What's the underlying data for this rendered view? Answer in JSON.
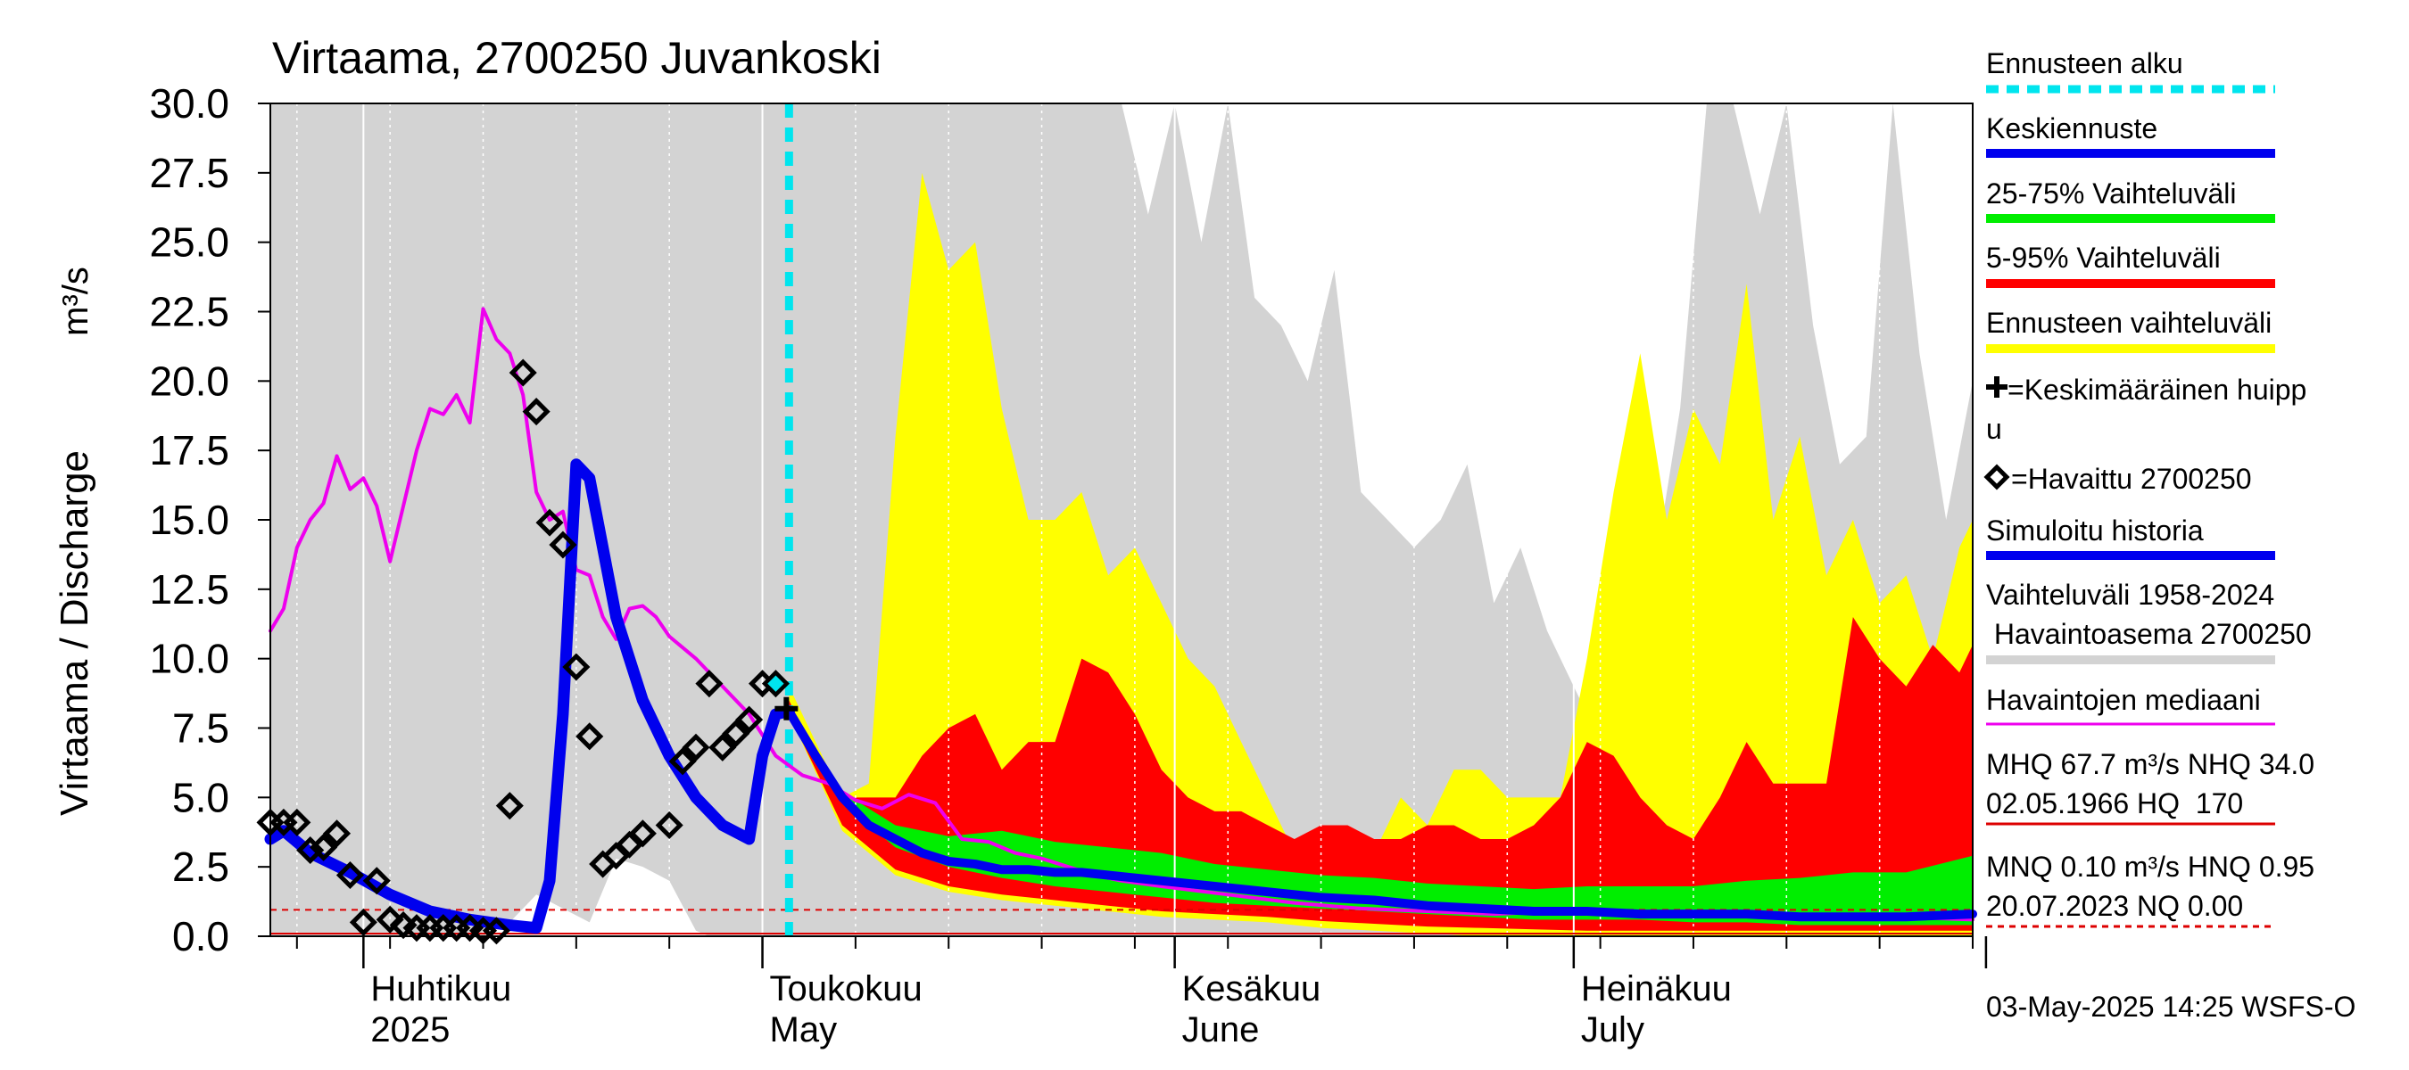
{
  "chart_data": {
    "type": "area",
    "title": "Virtaama, 2700250 Juvankoski",
    "ylabel": "Virtaama / Discharge",
    "yunit": "m³/s",
    "ylim": [
      0,
      30
    ],
    "yticks": [
      "0.0",
      "2.5",
      "5.0",
      "7.5",
      "10.0",
      "12.5",
      "15.0",
      "17.5",
      "20.0",
      "22.5",
      "25.0",
      "27.5",
      "30.0"
    ],
    "xlim": [
      "2025-03-25",
      "2025-07-31"
    ],
    "x_major_ticks": [
      "2025-04-01",
      "2025-05-01",
      "2025-06-01",
      "2025-07-01",
      "2025-08-01"
    ],
    "x_labels": [
      {
        "date": "2025-04-01",
        "line1": "Huhtikuu",
        "line2": "2025"
      },
      {
        "date": "2025-05-01",
        "line1": "Toukokuu",
        "line2": "May"
      },
      {
        "date": "2025-06-01",
        "line1": "Kesäkuu",
        "line2": "June"
      },
      {
        "date": "2025-07-01",
        "line1": "Heinäkuu",
        "line2": "July"
      }
    ],
    "forecast_start": "2025-05-03",
    "legend_placement": "right",
    "footer": "03-May-2025 14:25 WSFS-O",
    "colors": {
      "history_range": "#d3d3d3",
      "forecast_range": "#ffff00",
      "p5_95": "#ff0000",
      "p25_75": "#00ee00",
      "mean_forecast": "#0000ee",
      "simulated": "#0000ee",
      "median": "#ee00ee",
      "forecast_start": "#00e5ee",
      "reference_lines": "#dd0000"
    },
    "legend": [
      {
        "label": "Ennusteen alku",
        "color": "#00e5ee",
        "style": "dotted"
      },
      {
        "label": "Keskiennuste",
        "color": "#0000ee",
        "style": "line"
      },
      {
        "label": "25-75% Vaihteluväli",
        "color": "#00ee00",
        "style": "line"
      },
      {
        "label": "5-95% Vaihteluväli",
        "color": "#ff0000",
        "style": "line"
      },
      {
        "label": "Ennusteen vaihteluväli",
        "color": "#ffff00",
        "style": "line"
      },
      {
        "label": "=Keskimääräinen huipp",
        "label2": "u",
        "color": "#000000",
        "style": "plus"
      },
      {
        "label": "=Havaittu 2700250",
        "color": "#000000",
        "style": "diamond"
      },
      {
        "label": "Simuloitu historia",
        "color": "#0000ee",
        "style": "line"
      },
      {
        "label": "Vaihteluväli 1958-2024",
        "label2": " Havaintoasema 2700250",
        "color": "#d3d3d3",
        "style": "line"
      },
      {
        "label": "Havaintojen mediaani",
        "color": "#ee00ee",
        "style": "thin"
      },
      {
        "label": "MHQ 67.7 m³/s NHQ 34.0",
        "label2": "02.05.1966 HQ  170",
        "color": "#dd0000",
        "style": "thin"
      },
      {
        "label": "MNQ 0.10 m³/s HNQ 0.95",
        "label2": "20.07.2023 NQ 0.00",
        "color": "#dd0000",
        "style": "dashed"
      }
    ],
    "reference_levels": [
      {
        "name": "HNQ",
        "value": 0.95
      },
      {
        "name": "NQ",
        "value": 0.0
      }
    ],
    "mean_peak": {
      "date": "2025-05-03",
      "value": 8.2
    },
    "history_range_max": {
      "x": [
        "2025-03-25",
        "2025-04-27",
        "2025-05-05",
        "2025-05-10",
        "2025-05-12",
        "2025-05-14",
        "2025-05-16",
        "2025-05-18",
        "2025-05-20",
        "2025-05-22",
        "2025-05-24",
        "2025-05-26",
        "2025-05-28",
        "2025-05-30",
        "2025-06-01",
        "2025-06-03",
        "2025-06-05",
        "2025-06-07",
        "2025-06-09",
        "2025-06-11",
        "2025-06-13",
        "2025-06-15",
        "2025-06-17",
        "2025-06-19",
        "2025-06-21",
        "2025-06-23",
        "2025-06-25",
        "2025-06-27",
        "2025-06-29",
        "2025-07-01",
        "2025-07-03",
        "2025-07-05",
        "2025-07-07",
        "2025-07-09",
        "2025-07-11",
        "2025-07-13",
        "2025-07-15",
        "2025-07-17",
        "2025-07-19",
        "2025-07-21",
        "2025-07-23",
        "2025-07-25",
        "2025-07-27",
        "2025-07-29",
        "2025-07-31"
      ],
      "y": [
        30,
        30,
        30,
        30,
        30,
        30,
        30,
        30,
        30,
        30,
        30,
        30,
        30,
        26,
        30,
        25,
        30,
        23,
        22,
        20,
        24,
        16,
        15,
        14,
        15,
        17,
        12,
        14,
        11,
        9,
        7,
        10,
        13,
        19,
        30,
        30,
        26,
        30,
        22,
        17,
        18,
        30,
        21,
        15,
        20
      ]
    },
    "history_range_min": {
      "x": [
        "2025-03-25",
        "2025-04-10",
        "2025-04-12",
        "2025-04-14",
        "2025-04-16",
        "2025-04-18",
        "2025-04-20",
        "2025-04-22",
        "2025-04-24",
        "2025-04-26",
        "2025-04-27",
        "2025-07-31"
      ],
      "y": [
        0,
        0,
        0.5,
        1.5,
        1.0,
        0.5,
        2.8,
        2.5,
        2.0,
        0.2,
        0,
        0
      ]
    },
    "forecast_range_max": {
      "x": [
        "2025-05-03",
        "2025-05-05",
        "2025-05-07",
        "2025-05-09",
        "2025-05-11",
        "2025-05-13",
        "2025-05-15",
        "2025-05-17",
        "2025-05-19",
        "2025-05-21",
        "2025-05-23",
        "2025-05-25",
        "2025-05-27",
        "2025-05-29",
        "2025-05-31",
        "2025-06-02",
        "2025-06-04",
        "2025-06-06",
        "2025-06-08",
        "2025-06-10",
        "2025-06-12",
        "2025-06-14",
        "2025-06-16",
        "2025-06-18",
        "2025-06-20",
        "2025-06-22",
        "2025-06-24",
        "2025-06-26",
        "2025-06-28",
        "2025-06-30",
        "2025-07-02",
        "2025-07-04",
        "2025-07-06",
        "2025-07-08",
        "2025-07-10",
        "2025-07-12",
        "2025-07-14",
        "2025-07-16",
        "2025-07-18",
        "2025-07-20",
        "2025-07-22",
        "2025-07-24",
        "2025-07-26",
        "2025-07-28",
        "2025-07-30",
        "2025-07-31"
      ],
      "y": [
        9,
        7,
        5,
        5.5,
        18,
        27.5,
        24,
        25,
        19,
        15,
        15,
        16,
        13,
        14,
        12,
        10,
        9,
        7,
        5,
        3,
        4,
        4,
        3,
        5,
        4,
        6,
        6,
        5,
        5,
        5,
        10,
        16,
        21,
        15,
        19,
        17,
        23.5,
        15,
        18,
        13,
        15,
        12,
        13,
        10,
        14,
        15
      ]
    },
    "p5_95_max": {
      "x": [
        "2025-05-03",
        "2025-05-05",
        "2025-05-07",
        "2025-05-09",
        "2025-05-11",
        "2025-05-13",
        "2025-05-15",
        "2025-05-17",
        "2025-05-19",
        "2025-05-21",
        "2025-05-23",
        "2025-05-25",
        "2025-05-27",
        "2025-05-29",
        "2025-05-31",
        "2025-06-02",
        "2025-06-04",
        "2025-06-06",
        "2025-06-08",
        "2025-06-10",
        "2025-06-12",
        "2025-06-14",
        "2025-06-16",
        "2025-06-18",
        "2025-06-20",
        "2025-06-22",
        "2025-06-24",
        "2025-06-26",
        "2025-06-28",
        "2025-06-30",
        "2025-07-02",
        "2025-07-04",
        "2025-07-06",
        "2025-07-08",
        "2025-07-10",
        "2025-07-12",
        "2025-07-14",
        "2025-07-16",
        "2025-07-18",
        "2025-07-20",
        "2025-07-22",
        "2025-07-24",
        "2025-07-26",
        "2025-07-28",
        "2025-07-30",
        "2025-07-31"
      ],
      "y": [
        8.5,
        6.5,
        5,
        5,
        5,
        6.5,
        7.5,
        8,
        6,
        7,
        7,
        10,
        9.5,
        8,
        6,
        5,
        4.5,
        4.5,
        4,
        3.5,
        4,
        4,
        3.5,
        3.5,
        4,
        4,
        3.5,
        3.5,
        4,
        5,
        7,
        6.5,
        5,
        4,
        3.5,
        5,
        7,
        5.5,
        5.5,
        5.5,
        11.5,
        10,
        9,
        10.5,
        9.5,
        10.5
      ]
    },
    "p25_75_max": {
      "x": [
        "2025-05-03",
        "2025-05-07",
        "2025-05-11",
        "2025-05-15",
        "2025-05-19",
        "2025-05-23",
        "2025-05-27",
        "2025-05-31",
        "2025-06-04",
        "2025-06-08",
        "2025-06-12",
        "2025-06-16",
        "2025-06-20",
        "2025-06-24",
        "2025-06-28",
        "2025-07-02",
        "2025-07-06",
        "2025-07-10",
        "2025-07-14",
        "2025-07-18",
        "2025-07-22",
        "2025-07-26",
        "2025-07-31"
      ],
      "y": [
        8,
        5.2,
        4,
        3.6,
        3.8,
        3.4,
        3.2,
        3.0,
        2.6,
        2.4,
        2.2,
        2.1,
        1.9,
        1.8,
        1.7,
        1.8,
        1.8,
        1.8,
        2.0,
        2.1,
        2.3,
        2.3,
        2.9
      ]
    },
    "p25_75_min": {
      "x": [
        "2025-05-03",
        "2025-05-07",
        "2025-05-11",
        "2025-05-15",
        "2025-05-19",
        "2025-05-23",
        "2025-05-27",
        "2025-05-31",
        "2025-06-04",
        "2025-06-08",
        "2025-06-12",
        "2025-06-16",
        "2025-06-20",
        "2025-06-24",
        "2025-06-28",
        "2025-07-02",
        "2025-07-06",
        "2025-07-10",
        "2025-07-14",
        "2025-07-18",
        "2025-07-22",
        "2025-07-26",
        "2025-07-31"
      ],
      "y": [
        8,
        4.8,
        3.2,
        2.5,
        2.1,
        1.8,
        1.6,
        1.4,
        1.2,
        1.1,
        1.0,
        0.9,
        0.8,
        0.7,
        0.6,
        0.6,
        0.6,
        0.5,
        0.5,
        0.4,
        0.4,
        0.4,
        0.4
      ]
    },
    "p5_95_min": {
      "x": [
        "2025-05-03",
        "2025-05-07",
        "2025-05-11",
        "2025-05-15",
        "2025-05-19",
        "2025-05-23",
        "2025-05-27",
        "2025-05-31",
        "2025-06-04",
        "2025-06-08",
        "2025-06-12",
        "2025-06-16",
        "2025-06-20",
        "2025-06-24",
        "2025-06-28",
        "2025-07-02",
        "2025-07-06",
        "2025-07-10",
        "2025-07-14",
        "2025-07-18",
        "2025-07-22",
        "2025-07-26",
        "2025-07-31"
      ],
      "y": [
        8,
        4,
        2.4,
        1.8,
        1.5,
        1.3,
        1.1,
        0.9,
        0.8,
        0.7,
        0.55,
        0.45,
        0.35,
        0.3,
        0.25,
        0.2,
        0.2,
        0.2,
        0.2,
        0.2,
        0.2,
        0.2,
        0.2
      ]
    },
    "forecast_range_min": {
      "x": [
        "2025-05-03",
        "2025-05-07",
        "2025-05-11",
        "2025-05-15",
        "2025-05-19",
        "2025-05-23",
        "2025-05-27",
        "2025-05-31",
        "2025-06-04",
        "2025-06-08",
        "2025-06-12",
        "2025-06-16",
        "2025-06-20",
        "2025-06-24",
        "2025-06-28",
        "2025-07-02",
        "2025-07-31"
      ],
      "y": [
        8,
        3.8,
        2.2,
        1.6,
        1.3,
        1.1,
        0.9,
        0.7,
        0.6,
        0.5,
        0.3,
        0.2,
        0.1,
        0,
        0,
        0,
        0
      ]
    },
    "mean_forecast": {
      "x": [
        "2025-05-03",
        "2025-05-05",
        "2025-05-07",
        "2025-05-09",
        "2025-05-11",
        "2025-05-13",
        "2025-05-15",
        "2025-05-17",
        "2025-05-19",
        "2025-05-21",
        "2025-05-23",
        "2025-05-25",
        "2025-05-27",
        "2025-05-31",
        "2025-06-04",
        "2025-06-08",
        "2025-06-12",
        "2025-06-16",
        "2025-06-20",
        "2025-06-24",
        "2025-06-28",
        "2025-07-02",
        "2025-07-06",
        "2025-07-10",
        "2025-07-14",
        "2025-07-18",
        "2025-07-22",
        "2025-07-26",
        "2025-07-31"
      ],
      "y": [
        8.1,
        6.5,
        5.0,
        4.0,
        3.5,
        3.0,
        2.7,
        2.6,
        2.4,
        2.4,
        2.3,
        2.3,
        2.2,
        2.0,
        1.8,
        1.6,
        1.4,
        1.3,
        1.1,
        1.0,
        0.9,
        0.9,
        0.8,
        0.8,
        0.8,
        0.7,
        0.7,
        0.7,
        0.8
      ]
    },
    "simulated_history": {
      "x": [
        "2025-03-25",
        "2025-03-26",
        "2025-03-28",
        "2025-03-31",
        "2025-04-03",
        "2025-04-06",
        "2025-04-09",
        "2025-04-12",
        "2025-04-14",
        "2025-04-15",
        "2025-04-16",
        "2025-04-17",
        "2025-04-18",
        "2025-04-19",
        "2025-04-20",
        "2025-04-22",
        "2025-04-24",
        "2025-04-26",
        "2025-04-28",
        "2025-04-30",
        "2025-05-01",
        "2025-05-02",
        "2025-05-03"
      ],
      "y": [
        3.5,
        3.8,
        3.0,
        2.3,
        1.5,
        0.9,
        0.6,
        0.4,
        0.3,
        2.0,
        8.0,
        17.0,
        16.5,
        14.0,
        11.5,
        8.5,
        6.5,
        5.0,
        4.0,
        3.5,
        6.5,
        8.0,
        8.1
      ]
    },
    "observed": {
      "x": [
        "2025-03-25",
        "2025-03-26",
        "2025-03-27",
        "2025-03-28",
        "2025-03-29",
        "2025-03-30",
        "2025-03-31",
        "2025-04-01",
        "2025-04-02",
        "2025-04-03",
        "2025-04-04",
        "2025-04-05",
        "2025-04-06",
        "2025-04-07",
        "2025-04-08",
        "2025-04-09",
        "2025-04-10",
        "2025-04-11",
        "2025-04-12",
        "2025-04-13",
        "2025-04-14",
        "2025-04-15",
        "2025-04-16",
        "2025-04-17",
        "2025-04-18",
        "2025-04-19",
        "2025-04-20",
        "2025-04-21",
        "2025-04-22",
        "2025-04-24",
        "2025-04-25",
        "2025-04-26",
        "2025-04-27",
        "2025-04-28",
        "2025-04-29",
        "2025-04-30",
        "2025-05-01",
        "2025-05-02"
      ],
      "y": [
        4.1,
        4.1,
        4.1,
        3.1,
        3.2,
        3.7,
        2.2,
        0.5,
        2.0,
        0.6,
        0.4,
        0.3,
        0.3,
        0.3,
        0.3,
        0.3,
        0.2,
        0.2,
        4.7,
        20.3,
        18.9,
        14.9,
        14.1,
        9.7,
        7.2,
        2.6,
        2.9,
        3.3,
        3.7,
        4.0,
        6.3,
        6.8,
        9.1,
        6.8,
        7.3,
        7.8,
        9.1,
        9.1
      ]
    },
    "observed_latest": {
      "date": "2025-05-02",
      "value": 9.1
    },
    "median": {
      "x": [
        "2025-03-25",
        "2025-03-26",
        "2025-03-27",
        "2025-03-28",
        "2025-03-29",
        "2025-03-30",
        "2025-03-31",
        "2025-04-01",
        "2025-04-02",
        "2025-04-03",
        "2025-04-04",
        "2025-04-05",
        "2025-04-06",
        "2025-04-07",
        "2025-04-08",
        "2025-04-09",
        "2025-04-10",
        "2025-04-11",
        "2025-04-12",
        "2025-04-13",
        "2025-04-14",
        "2025-04-15",
        "2025-04-16",
        "2025-04-17",
        "2025-04-18",
        "2025-04-19",
        "2025-04-20",
        "2025-04-21",
        "2025-04-22",
        "2025-04-23",
        "2025-04-24",
        "2025-04-26",
        "2025-04-28",
        "2025-04-30",
        "2025-05-02",
        "2025-05-04",
        "2025-05-06",
        "2025-05-08",
        "2025-05-10",
        "2025-05-12",
        "2025-05-14",
        "2025-05-16",
        "2025-05-18",
        "2025-05-20",
        "2025-05-22",
        "2025-05-24",
        "2025-05-26",
        "2025-05-28",
        "2025-05-31",
        "2025-06-05",
        "2025-06-10",
        "2025-06-15",
        "2025-06-20",
        "2025-06-25",
        "2025-06-30",
        "2025-07-05",
        "2025-07-10",
        "2025-07-15",
        "2025-07-20",
        "2025-07-25",
        "2025-07-31"
      ],
      "y": [
        11.0,
        11.8,
        14.0,
        15.0,
        15.6,
        17.3,
        16.1,
        16.5,
        15.5,
        13.5,
        15.5,
        17.5,
        19.0,
        18.8,
        19.5,
        18.5,
        22.6,
        21.5,
        21.0,
        19.5,
        16.0,
        15.0,
        15.3,
        13.2,
        13.0,
        11.5,
        10.7,
        11.8,
        11.9,
        11.5,
        10.8,
        10.0,
        9.0,
        8.0,
        6.5,
        5.8,
        5.5,
        4.9,
        4.6,
        5.1,
        4.8,
        3.5,
        3.4,
        3.0,
        2.8,
        2.5,
        2.2,
        2.0,
        1.8,
        1.5,
        1.2,
        1.0,
        0.9,
        0.8,
        0.9,
        0.8,
        0.8,
        0.7,
        0.7,
        0.7,
        0.6
      ]
    }
  }
}
